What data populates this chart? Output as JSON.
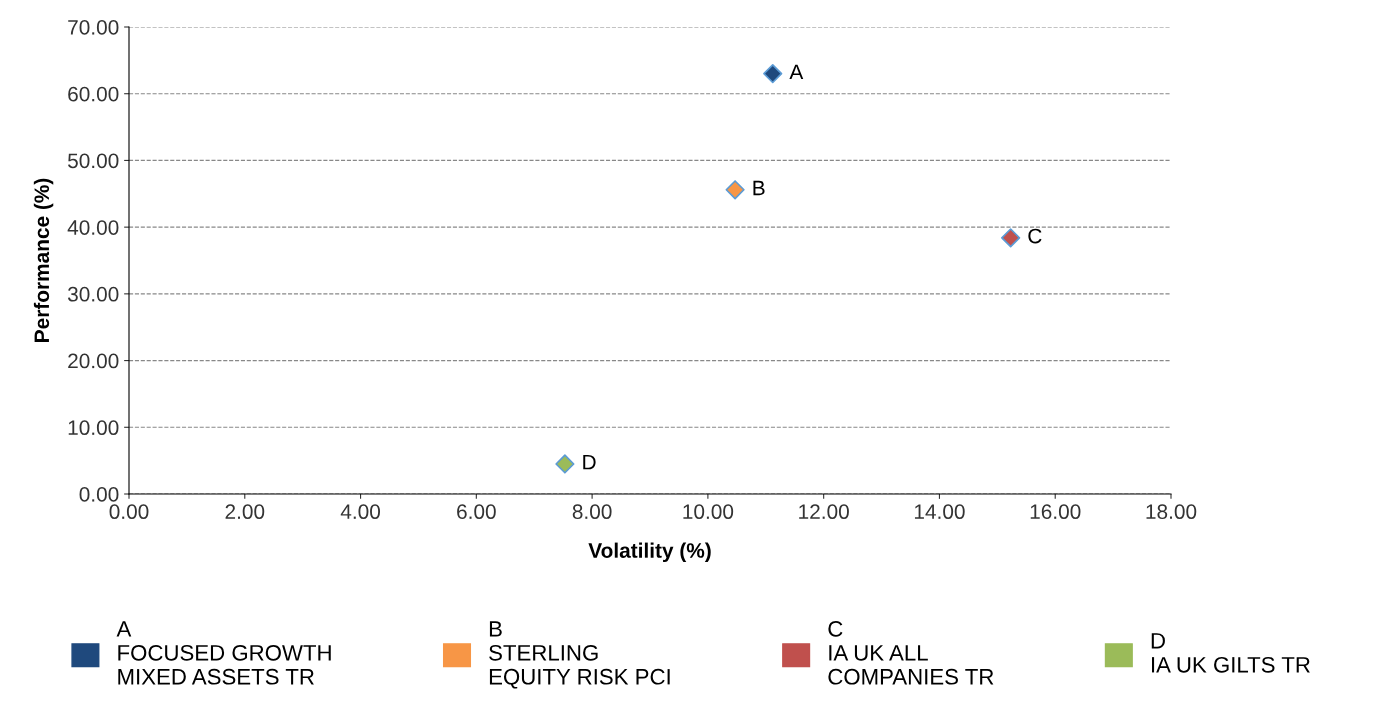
{
  "chart_data": {
    "type": "scatter",
    "xlabel": "Volatility (%)",
    "ylabel": "Performance (%)",
    "series": [
      {
        "name": "A\nFOCUSED GROWTH\nMIXED ASSETS TR",
        "color": "#1f497d",
        "x": [
          11.12
        ],
        "values": [
          63.0
        ]
      },
      {
        "name": "B\nSTERLING\nEQUITY RISK PCI",
        "color": "#f79646",
        "x": [
          10.47
        ],
        "values": [
          45.6
        ]
      },
      {
        "name": "C\nIA UK ALL\nCOMPANIES TR",
        "color": "#c0504d",
        "x": [
          15.23
        ],
        "values": [
          38.4
        ]
      },
      {
        "name": "D\nIA UK GILTS TR",
        "color": "#9bbb59",
        "x": [
          7.53
        ],
        "values": [
          4.5
        ]
      }
    ],
    "annotations": [
      {
        "text": "A",
        "x": 11.12,
        "y": 63.0
      },
      {
        "text": "B",
        "x": 10.47,
        "y": 45.6
      },
      {
        "text": "C",
        "x": 15.23,
        "y": 38.4
      },
      {
        "text": "D",
        "x": 7.53,
        "y": 4.5
      }
    ],
    "xlim": [
      0,
      18
    ],
    "ylim": [
      0,
      70
    ],
    "xticks": [
      {
        "value": 0,
        "label": "0.00"
      },
      {
        "value": 2,
        "label": "2.00"
      },
      {
        "value": 4,
        "label": "4.00"
      },
      {
        "value": 6,
        "label": "6.00"
      },
      {
        "value": 8,
        "label": "8.00"
      },
      {
        "value": 10,
        "label": "10.00"
      },
      {
        "value": 12,
        "label": "12.00"
      },
      {
        "value": 14,
        "label": "14.00"
      },
      {
        "value": 16,
        "label": "16.00"
      },
      {
        "value": 18,
        "label": "18.00"
      }
    ],
    "yticks": [
      {
        "value": 0,
        "label": "0.00"
      },
      {
        "value": 10,
        "label": "10.00"
      },
      {
        "value": 20,
        "label": "20.00"
      },
      {
        "value": 30,
        "label": "30.00"
      },
      {
        "value": 40,
        "label": "40.00"
      },
      {
        "value": 50,
        "label": "50.00"
      },
      {
        "value": 60,
        "label": "60.00"
      },
      {
        "value": 70,
        "label": "70.00"
      }
    ],
    "grid": "y",
    "legend": "bottom",
    "marker": "diamond"
  }
}
